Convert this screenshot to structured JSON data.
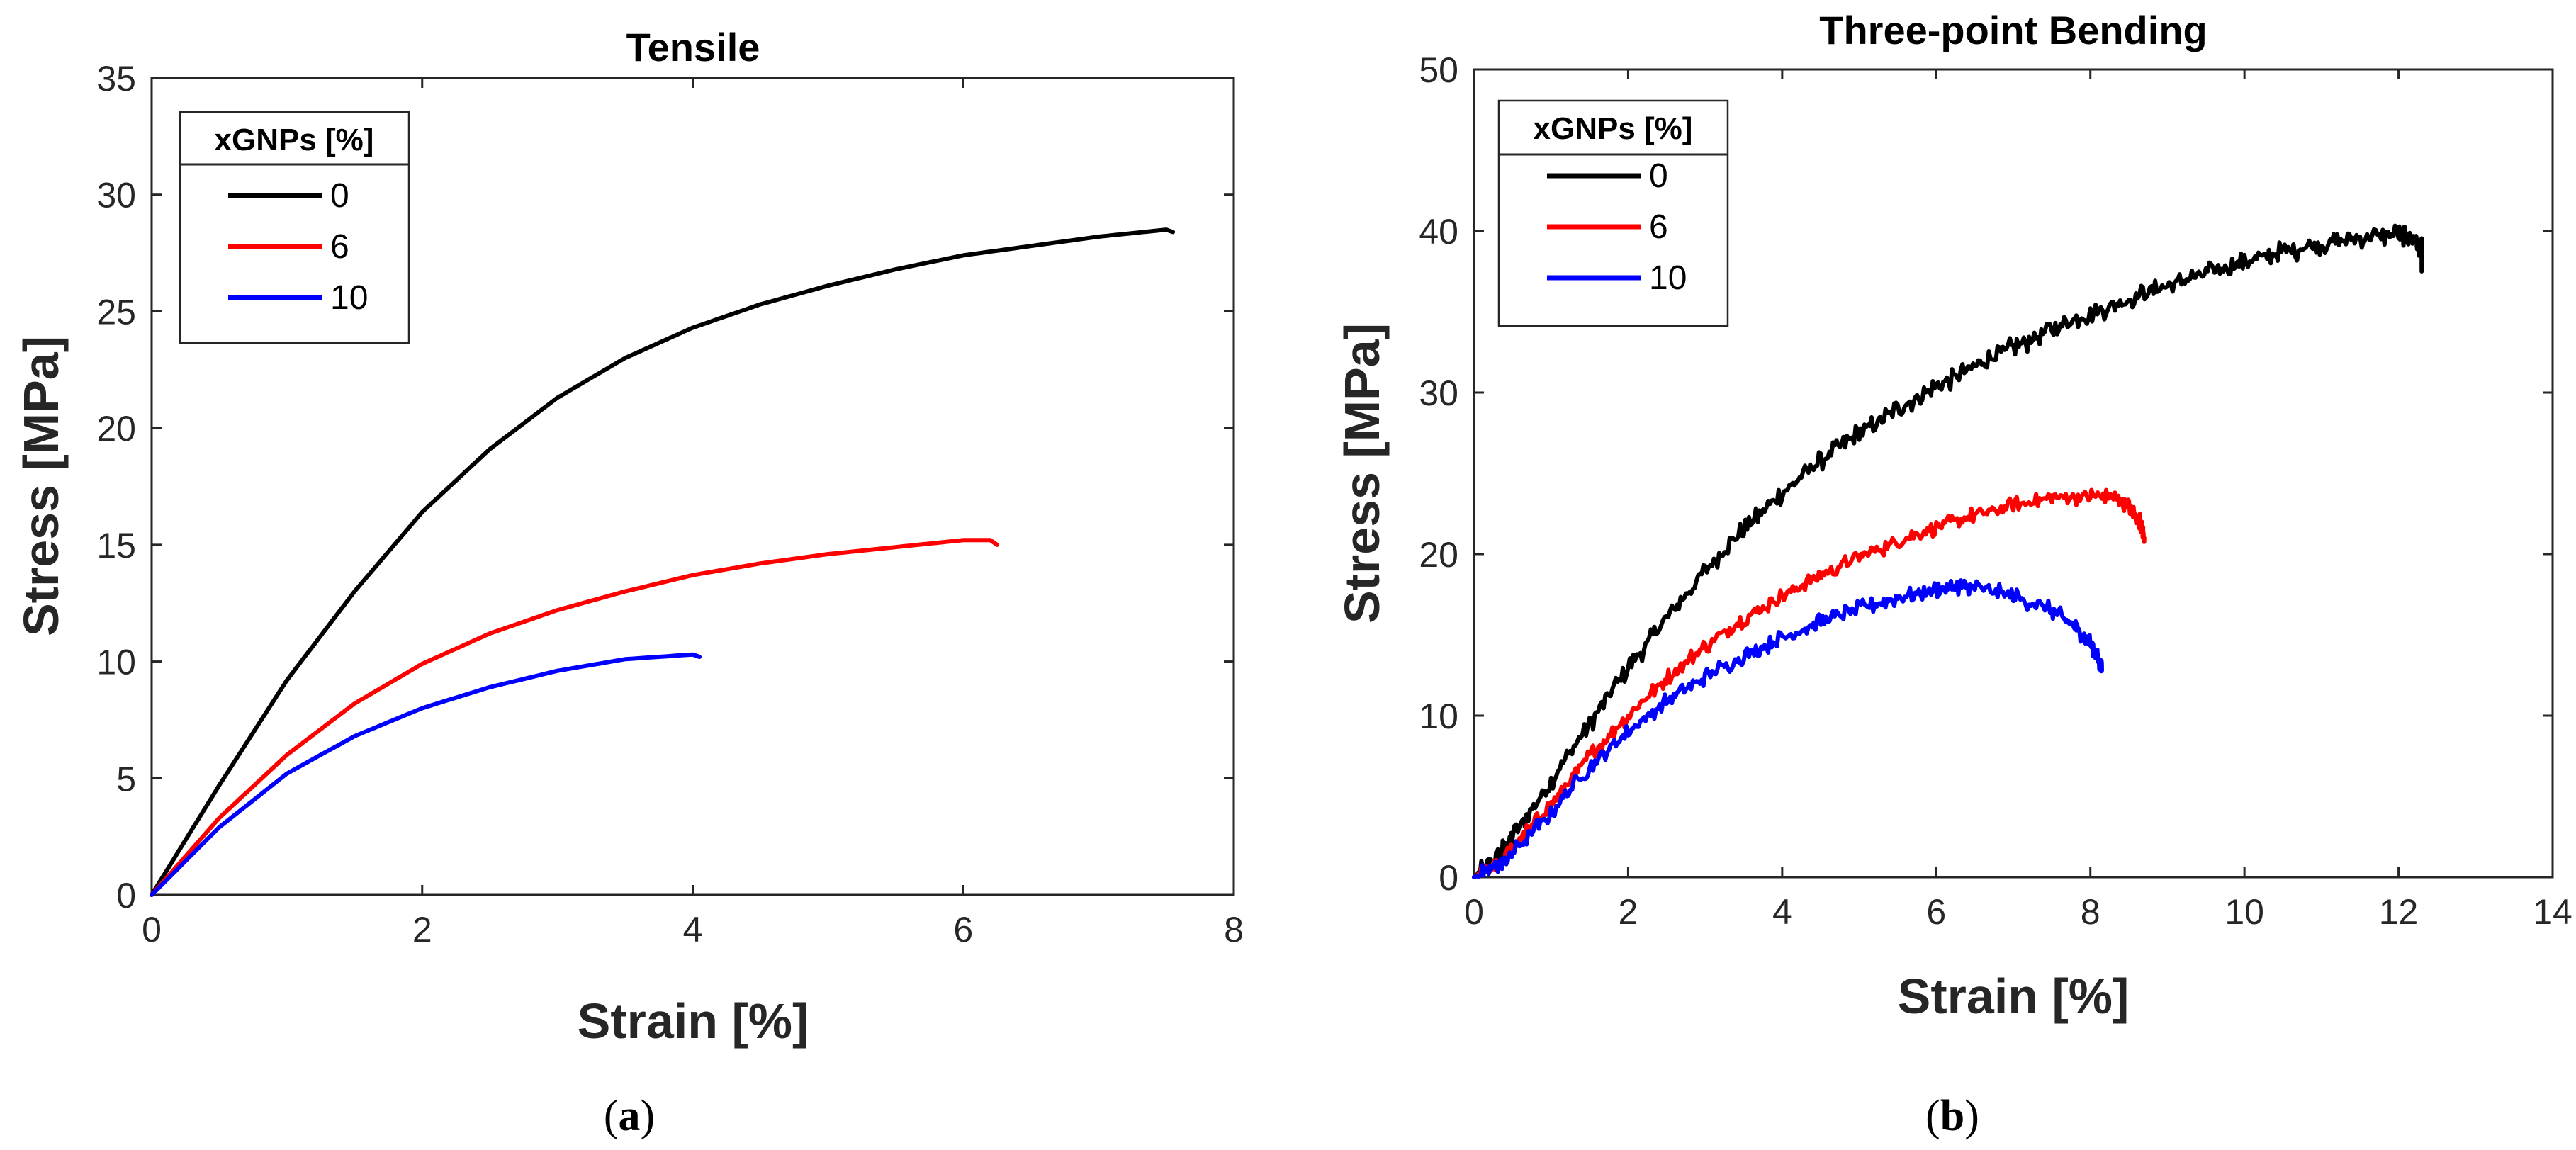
{
  "chart_data": [
    {
      "type": "line",
      "panel_label": "a",
      "title": "Tensile",
      "xlabel": "Strain [%]",
      "ylabel": "Stress [MPa]",
      "xlim": [
        0,
        8
      ],
      "ylim": [
        0,
        35
      ],
      "xticks": [
        0,
        2,
        4,
        6,
        8
      ],
      "yticks": [
        0,
        5,
        10,
        15,
        20,
        25,
        30,
        35
      ],
      "grid": false,
      "legend": {
        "title": "xGNPs [%]",
        "position": "top-left"
      },
      "series": [
        {
          "name": "0",
          "color": "#000000",
          "noise": 0,
          "x": [
            0,
            0.5,
            1,
            1.5,
            2,
            2.5,
            3,
            3.5,
            4,
            4.5,
            5,
            5.5,
            6,
            6.5,
            7,
            7.5,
            7.55
          ],
          "y": [
            0,
            4.7,
            9.2,
            13.0,
            16.4,
            19.1,
            21.3,
            23.0,
            24.3,
            25.3,
            26.1,
            26.8,
            27.4,
            27.8,
            28.2,
            28.5,
            28.4
          ]
        },
        {
          "name": "6",
          "color": "#ff0000",
          "noise": 0,
          "x": [
            0,
            0.5,
            1,
            1.5,
            2,
            2.5,
            3,
            3.5,
            4,
            4.5,
            5,
            5.5,
            6,
            6.2,
            6.25
          ],
          "y": [
            0,
            3.3,
            6.0,
            8.2,
            9.9,
            11.2,
            12.2,
            13.0,
            13.7,
            14.2,
            14.6,
            14.9,
            15.2,
            15.2,
            15.0
          ]
        },
        {
          "name": "10",
          "color": "#0000ff",
          "noise": 0,
          "x": [
            0,
            0.5,
            1,
            1.5,
            2,
            2.5,
            3,
            3.5,
            4,
            4.05
          ],
          "y": [
            0,
            2.9,
            5.2,
            6.8,
            8.0,
            8.9,
            9.6,
            10.1,
            10.3,
            10.2
          ]
        }
      ]
    },
    {
      "type": "line",
      "panel_label": "b",
      "title": "Three-point Bending",
      "xlabel": "Strain [%]",
      "ylabel": "Stress [MPa]",
      "xlim": [
        0,
        14
      ],
      "ylim": [
        0,
        50
      ],
      "xticks": [
        0,
        2,
        4,
        6,
        8,
        10,
        12,
        14
      ],
      "yticks": [
        0,
        10,
        20,
        30,
        40,
        50
      ],
      "grid": false,
      "legend": {
        "title": "xGNPs [%]",
        "position": "top-left"
      },
      "series": [
        {
          "name": "0",
          "color": "#000000",
          "noise": 0.45,
          "x": [
            0,
            0.3,
            0.5,
            1,
            1.5,
            2,
            2.5,
            3,
            3.5,
            4,
            4.5,
            5,
            5.5,
            6,
            6.5,
            7,
            7.5,
            8,
            8.5,
            9,
            9.5,
            10,
            10.5,
            11,
            11.5,
            12,
            12.2,
            12.3,
            12.3
          ],
          "y": [
            0,
            1.2,
            2.5,
            6.0,
            9.5,
            13.0,
            16.0,
            19.0,
            21.5,
            23.8,
            25.8,
            27.5,
            29.0,
            30.4,
            31.6,
            32.8,
            33.9,
            34.9,
            35.8,
            36.6,
            37.4,
            38.1,
            38.7,
            39.2,
            39.6,
            39.8,
            39.5,
            39.0,
            37.5
          ]
        },
        {
          "name": "6",
          "color": "#ff0000",
          "noise": 0.35,
          "x": [
            0,
            0.3,
            0.5,
            1,
            1.5,
            2,
            2.5,
            3,
            3.5,
            4,
            4.5,
            5,
            5.5,
            6,
            6.5,
            7,
            7.5,
            8,
            8.3,
            8.5,
            8.65,
            8.7
          ],
          "y": [
            0,
            0.8,
            1.8,
            4.5,
            7.5,
            10.0,
            12.3,
            14.3,
            16.0,
            17.4,
            18.7,
            19.8,
            20.8,
            21.7,
            22.4,
            23.0,
            23.5,
            23.6,
            23.5,
            23.0,
            22.0,
            21.0
          ]
        },
        {
          "name": "10",
          "color": "#0000ff",
          "noise": 0.35,
          "x": [
            0,
            0.3,
            0.5,
            1,
            1.5,
            2,
            2.5,
            3,
            3.5,
            4,
            4.5,
            5,
            5.5,
            6,
            6.3,
            6.5,
            7,
            7.5,
            7.8,
            8.0,
            8.1,
            8.15
          ],
          "y": [
            0,
            0.7,
            1.5,
            4.0,
            6.8,
            9.0,
            10.9,
            12.4,
            13.7,
            14.8,
            15.8,
            16.6,
            17.3,
            17.8,
            18.0,
            17.9,
            17.4,
            16.5,
            15.5,
            14.5,
            13.5,
            12.8
          ]
        }
      ]
    }
  ]
}
